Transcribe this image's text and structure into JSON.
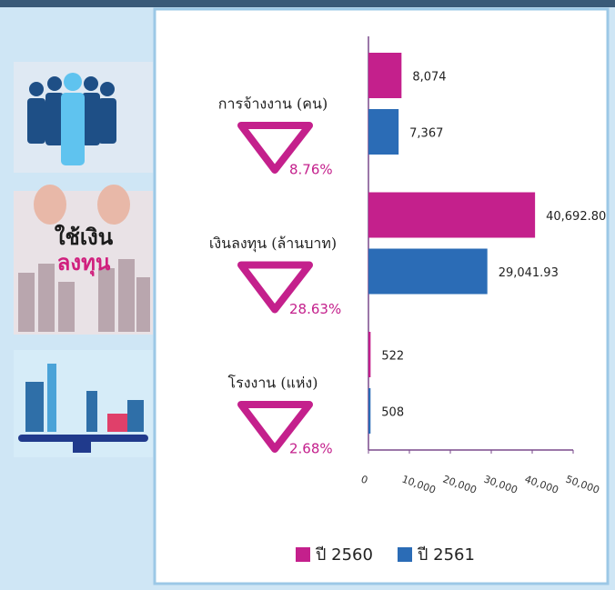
{
  "chart_data": {
    "type": "bar",
    "orientation": "horizontal",
    "categories": [
      "การจ้างงาน (คน)",
      "เงินลงทุน (ล้านบาท)",
      "โรงงาน (แห่ง)"
    ],
    "series": [
      {
        "name": "ปี 2560",
        "color": "#c4208c",
        "values": [
          8074,
          40692.8,
          522
        ],
        "value_labels": [
          "8,074",
          "40,692.80",
          "522"
        ]
      },
      {
        "name": "ปี 2561",
        "color": "#2b6cb6",
        "values": [
          7367,
          29041.93,
          508
        ],
        "value_labels": [
          "7,367",
          "29,041.93",
          "508"
        ]
      }
    ],
    "annotations": [
      "8.76%",
      "28.63%",
      "2.68%"
    ],
    "xlim": [
      0,
      50000
    ],
    "xticks": [
      0,
      {
        "value": 10000,
        "label": "10,000"
      },
      {
        "value": 20000,
        "label": "20,000"
      },
      {
        "value": 30000,
        "label": "30,000"
      },
      {
        "value": 40000,
        "label": "40,000"
      },
      {
        "value": 50000,
        "label": "50,000"
      }
    ],
    "grid": false,
    "legend": "bottom"
  },
  "sidebar": {
    "image_text": [
      "ใช้เงิน",
      "ลงทุน"
    ]
  }
}
